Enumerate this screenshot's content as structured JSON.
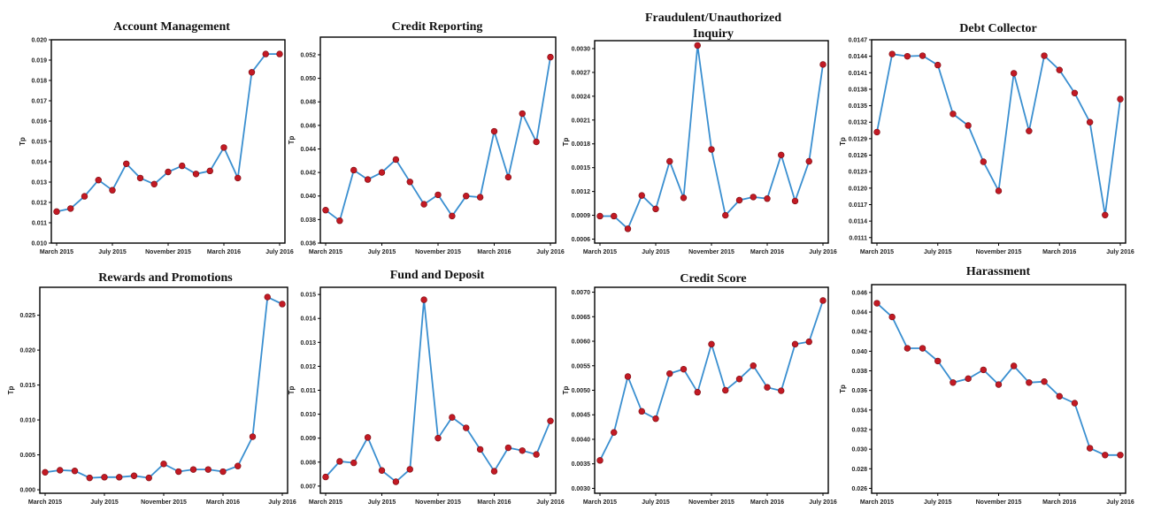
{
  "chart_data": [
    {
      "type": "line",
      "title": "Account Management",
      "ylabel": "Tp",
      "xtick_labels": [
        "March 2015",
        "July 2015",
        "November 2015",
        "March 2016",
        "July 2016"
      ],
      "ytick_labels": [
        "0.010",
        "0.011",
        "0.012",
        "0.013",
        "0.014",
        "0.015",
        "0.016",
        "0.017",
        "0.018",
        "0.019",
        "0.020"
      ],
      "ylim": [
        0.01,
        0.02
      ],
      "x": [
        "2015-03",
        "2015-04",
        "2015-05",
        "2015-06",
        "2015-07",
        "2015-08",
        "2015-09",
        "2015-10",
        "2015-11",
        "2015-12",
        "2016-01",
        "2016-02",
        "2016-03",
        "2016-04",
        "2016-05",
        "2016-06",
        "2016-07"
      ],
      "values": [
        0.01155,
        0.0117,
        0.0123,
        0.0131,
        0.0126,
        0.0139,
        0.0132,
        0.0129,
        0.0135,
        0.0138,
        0.0134,
        0.01355,
        0.0147,
        0.0132,
        0.0184,
        0.0193,
        0.0193
      ]
    },
    {
      "type": "line",
      "title": "Credit Reporting",
      "ylabel": "Tp",
      "xtick_labels": [
        "March 2015",
        "July 2015",
        "November 2015",
        "March 2016",
        "July 2016"
      ],
      "ytick_labels": [
        "0.036",
        "0.038",
        "0.040",
        "0.042",
        "0.044",
        "0.046",
        "0.048",
        "0.050",
        "0.052"
      ],
      "ylim": [
        0.036,
        0.0535
      ],
      "x": [
        "2015-03",
        "2015-04",
        "2015-05",
        "2015-06",
        "2015-07",
        "2015-08",
        "2015-09",
        "2015-10",
        "2015-11",
        "2015-12",
        "2016-01",
        "2016-02",
        "2016-03",
        "2016-04",
        "2016-05",
        "2016-06",
        "2016-07"
      ],
      "values": [
        0.0388,
        0.0379,
        0.0422,
        0.0414,
        0.042,
        0.0431,
        0.0412,
        0.0393,
        0.0401,
        0.0383,
        0.04,
        0.0399,
        0.0455,
        0.0416,
        0.047,
        0.0446,
        0.0518
      ]
    },
    {
      "type": "line",
      "title": "Fraudulent/Unauthorized Inquiry",
      "ylabel": "Tp",
      "xtick_labels": [
        "March 2015",
        "July 2015",
        "November 2015",
        "March 2016",
        "July 2016"
      ],
      "ytick_labels": [
        "0.0006",
        "0.0009",
        "0.0012",
        "0.0015",
        "0.0018",
        "0.0021",
        "0.0024",
        "0.0027",
        "0.0030"
      ],
      "ylim": [
        0.00055,
        0.0031
      ],
      "x": [
        "2015-03",
        "2015-04",
        "2015-05",
        "2015-06",
        "2015-07",
        "2015-08",
        "2015-09",
        "2015-10",
        "2015-11",
        "2015-12",
        "2016-01",
        "2016-02",
        "2016-03",
        "2016-04",
        "2016-05",
        "2016-06",
        "2016-07"
      ],
      "values": [
        0.00089,
        0.00089,
        0.00073,
        0.00115,
        0.00098,
        0.00158,
        0.00112,
        0.00304,
        0.00173,
        0.0009,
        0.00109,
        0.00113,
        0.00111,
        0.00166,
        0.00108,
        0.00158,
        0.0028
      ]
    },
    {
      "type": "line",
      "title": "Debt Collector",
      "ylabel": "Tp",
      "xtick_labels": [
        "March 2015",
        "July 2015",
        "November 2015",
        "March 2016",
        "July 2016"
      ],
      "ytick_labels": [
        "0.0111",
        "0.0114",
        "0.0117",
        "0.0120",
        "0.0123",
        "0.0126",
        "0.0129",
        "0.0132",
        "0.0135",
        "0.0138",
        "0.0141",
        "0.0144",
        "0.0147"
      ],
      "ylim": [
        0.011,
        0.0147
      ],
      "x": [
        "2015-03",
        "2015-04",
        "2015-05",
        "2015-06",
        "2015-07",
        "2015-08",
        "2015-09",
        "2015-10",
        "2015-11",
        "2015-12",
        "2016-01",
        "2016-02",
        "2016-03",
        "2016-04",
        "2016-05",
        "2016-06",
        "2016-07"
      ],
      "values": [
        0.01302,
        0.01444,
        0.0144,
        0.01441,
        0.01424,
        0.01335,
        0.01314,
        0.01248,
        0.01195,
        0.01409,
        0.01304,
        0.01441,
        0.01415,
        0.01373,
        0.0132,
        0.01151,
        0.01362
      ]
    },
    {
      "type": "line",
      "title": "Rewards and Promotions",
      "ylabel": "Tp",
      "xtick_labels": [
        "March 2015",
        "July 2015",
        "November 2015",
        "March 2016",
        "July 2016"
      ],
      "ytick_labels": [
        "0.000",
        "0.005",
        "0.010",
        "0.015",
        "0.020",
        "0.025"
      ],
      "ylim": [
        -0.0005,
        0.029
      ],
      "x": [
        "2015-03",
        "2015-04",
        "2015-05",
        "2015-06",
        "2015-07",
        "2015-08",
        "2015-09",
        "2015-10",
        "2015-11",
        "2015-12",
        "2016-01",
        "2016-02",
        "2016-03",
        "2016-04",
        "2016-05",
        "2016-06",
        "2016-07"
      ],
      "values": [
        0.0025,
        0.0028,
        0.0027,
        0.0017,
        0.0018,
        0.0018,
        0.002,
        0.0017,
        0.0037,
        0.0026,
        0.0029,
        0.0029,
        0.0026,
        0.0034,
        0.0076,
        0.0276,
        0.0266
      ]
    },
    {
      "type": "line",
      "title": "Fund and Deposit",
      "ylabel": "Tp",
      "xtick_labels": [
        "March 2015",
        "July 2015",
        "November 2015",
        "March 2016",
        "July 2016"
      ],
      "ytick_labels": [
        "0.007",
        "0.008",
        "0.009",
        "0.010",
        "0.011",
        "0.012",
        "0.013",
        "0.014",
        "0.015"
      ],
      "ylim": [
        0.0067,
        0.0153
      ],
      "x": [
        "2015-03",
        "2015-04",
        "2015-05",
        "2015-06",
        "2015-07",
        "2015-08",
        "2015-09",
        "2015-10",
        "2015-11",
        "2015-12",
        "2016-01",
        "2016-02",
        "2016-03",
        "2016-04",
        "2016-05",
        "2016-06",
        "2016-07"
      ],
      "values": [
        0.00738,
        0.00803,
        0.00797,
        0.00903,
        0.00765,
        0.00718,
        0.0077,
        0.01478,
        0.009,
        0.00987,
        0.00943,
        0.00853,
        0.00762,
        0.0086,
        0.00848,
        0.00832,
        0.00972
      ]
    },
    {
      "type": "line",
      "title": "Credit Score",
      "ylabel": "Tp",
      "xtick_labels": [
        "March 2015",
        "July 2015",
        "November 2015",
        "March 2016",
        "July 2016"
      ],
      "ytick_labels": [
        "0.0030",
        "0.0035",
        "0.0040",
        "0.0045",
        "0.0050",
        "0.0055",
        "0.0060",
        "0.0065",
        "0.0070"
      ],
      "ylim": [
        0.0029,
        0.0071
      ],
      "x": [
        "2015-03",
        "2015-04",
        "2015-05",
        "2015-06",
        "2015-07",
        "2015-08",
        "2015-09",
        "2015-10",
        "2015-11",
        "2015-12",
        "2016-01",
        "2016-02",
        "2016-03",
        "2016-04",
        "2016-05",
        "2016-06",
        "2016-07"
      ],
      "values": [
        0.00357,
        0.00414,
        0.00528,
        0.00457,
        0.00442,
        0.00534,
        0.00543,
        0.00496,
        0.00594,
        0.005,
        0.00523,
        0.0055,
        0.00506,
        0.00499,
        0.00594,
        0.00599,
        0.00683
      ]
    },
    {
      "type": "line",
      "title": "Harassment",
      "ylabel": "Tp",
      "xtick_labels": [
        "March 2015",
        "July 2015",
        "November 2015",
        "March 2016",
        "July 2016"
      ],
      "ytick_labels": [
        "0.026",
        "0.028",
        "0.030",
        "0.032",
        "0.034",
        "0.036",
        "0.038",
        "0.040",
        "0.042",
        "0.044",
        "0.046"
      ],
      "ylim": [
        0.0255,
        0.0468
      ],
      "x": [
        "2015-03",
        "2015-04",
        "2015-05",
        "2015-06",
        "2015-07",
        "2015-08",
        "2015-09",
        "2015-10",
        "2015-11",
        "2015-12",
        "2016-01",
        "2016-02",
        "2016-03",
        "2016-04",
        "2016-05",
        "2016-06",
        "2016-07"
      ],
      "values": [
        0.0449,
        0.0435,
        0.0403,
        0.0403,
        0.039,
        0.0368,
        0.0372,
        0.0381,
        0.0366,
        0.0385,
        0.0368,
        0.0369,
        0.0354,
        0.0347,
        0.0301,
        0.0294,
        0.0294
      ]
    }
  ],
  "style": {
    "line_color": "#3a8fd0",
    "marker_color": "#c21a24",
    "marker_edge": "#7a0a10",
    "axis_color": "#000000"
  }
}
